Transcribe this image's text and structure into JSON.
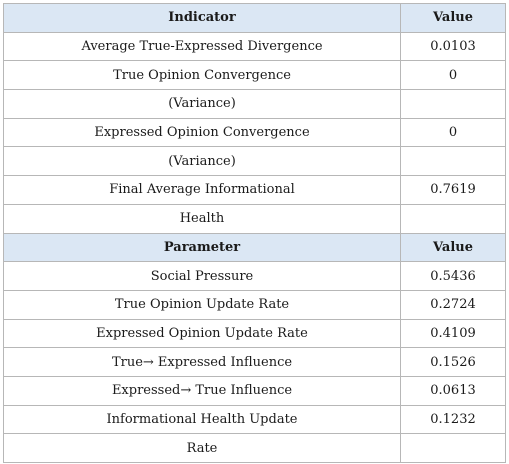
{
  "header_indicator": {
    "col1": "Indicator",
    "col2": "Value"
  },
  "indicators": [
    {
      "label": "Average True-Expressed Divergence",
      "value": "0.0103"
    },
    {
      "label": "True Opinion Convergence",
      "value": "0"
    },
    {
      "label": "(Variance)",
      "value": ""
    },
    {
      "label": "Expressed Opinion Convergence",
      "value": "0"
    },
    {
      "label": "(Variance)",
      "value": ""
    },
    {
      "label": "Final Average Informational",
      "value": "0.7619"
    },
    {
      "label": "Health",
      "value": ""
    }
  ],
  "header_parameter": {
    "col1": "Parameter",
    "col2": "Value"
  },
  "parameters": [
    {
      "label": "Social Pressure",
      "value": "0.5436"
    },
    {
      "label": "True Opinion Update Rate",
      "value": "0.2724"
    },
    {
      "label": "Expressed Opinion Update Rate",
      "value": "0.4109"
    },
    {
      "label": "True→ Expressed Influence",
      "value": "0.1526"
    },
    {
      "label": "Expressed→ True Influence",
      "value": "0.0613"
    },
    {
      "label": "Informational Health Update",
      "value": "0.1232"
    },
    {
      "label": "Rate",
      "value": ""
    }
  ]
}
